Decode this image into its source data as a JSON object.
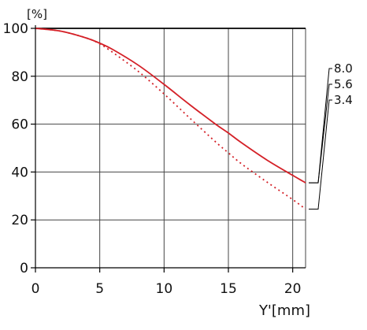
{
  "chart_data": {
    "type": "line",
    "y_unit_label": "[%]",
    "xlabel": "Y'[mm]",
    "ylabel": "",
    "xlim": [
      0,
      21
    ],
    "ylim": [
      0,
      100
    ],
    "x_ticks": [
      0,
      5,
      10,
      15,
      20
    ],
    "y_ticks": [
      0,
      20,
      40,
      60,
      80,
      100
    ],
    "grid": true,
    "series": [
      {
        "name": "8.0",
        "color": "#000000",
        "style": "solid",
        "x": [
          0,
          21
        ],
        "y": [
          100,
          100
        ]
      },
      {
        "name": "5.6",
        "color": "#d42027",
        "style": "solid",
        "x": [
          0,
          2,
          4,
          5,
          6,
          8,
          10,
          12,
          14,
          15,
          16,
          18,
          20,
          21
        ],
        "y": [
          100,
          98.8,
          95.9,
          93.8,
          91.2,
          84.6,
          76.6,
          68.1,
          60.0,
          56.3,
          52.3,
          45.0,
          38.6,
          35.5
        ]
      },
      {
        "name": "3.4",
        "color": "#d42027",
        "style": "dotted",
        "x": [
          0,
          2,
          4,
          5,
          6,
          8,
          10,
          12,
          14,
          15,
          16,
          18,
          20,
          21
        ],
        "y": [
          100,
          98.8,
          95.9,
          93.5,
          90.0,
          82.0,
          72.6,
          62.5,
          52.6,
          48.0,
          43.5,
          35.8,
          28.5,
          24.5
        ]
      }
    ],
    "legend": {
      "placement": "right",
      "labels": [
        "8.0",
        "5.6",
        "3.4"
      ]
    }
  }
}
